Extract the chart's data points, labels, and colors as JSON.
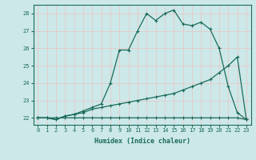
{
  "xlabel": "Humidex (Indice chaleur)",
  "x": [
    0,
    1,
    2,
    3,
    4,
    5,
    6,
    7,
    8,
    9,
    10,
    11,
    12,
    13,
    14,
    15,
    16,
    17,
    18,
    19,
    20,
    21,
    22,
    23
  ],
  "line_flat": [
    22,
    22,
    22,
    22,
    22,
    22,
    22,
    22,
    22,
    22,
    22,
    22,
    22,
    22,
    22,
    22,
    22,
    22,
    22,
    22,
    22,
    22,
    22,
    21.9
  ],
  "line_mid": [
    22,
    22,
    21.9,
    22.1,
    22.2,
    22.3,
    22.5,
    22.6,
    22.7,
    22.8,
    22.9,
    23.0,
    23.1,
    23.2,
    23.3,
    23.4,
    23.6,
    23.8,
    24.0,
    24.2,
    24.6,
    25.0,
    25.5,
    21.9
  ],
  "line_top": [
    22,
    22,
    21.9,
    22.1,
    22.2,
    22.4,
    22.6,
    22.8,
    24.0,
    25.9,
    25.9,
    27.0,
    28.0,
    27.6,
    28.0,
    28.2,
    27.4,
    27.3,
    27.5,
    27.1,
    26.0,
    23.8,
    22.3,
    21.9
  ],
  "ylim": [
    21.6,
    28.5
  ],
  "xlim": [
    -0.5,
    23.5
  ],
  "yticks": [
    22,
    23,
    24,
    25,
    26,
    27,
    28
  ],
  "xticks": [
    0,
    1,
    2,
    3,
    4,
    5,
    6,
    7,
    8,
    9,
    10,
    11,
    12,
    13,
    14,
    15,
    16,
    17,
    18,
    19,
    20,
    21,
    22,
    23
  ],
  "line_color": "#1a6b5a",
  "bg_color": "#cce8e8",
  "grid_color": "#b8d4d4",
  "marker": "+"
}
